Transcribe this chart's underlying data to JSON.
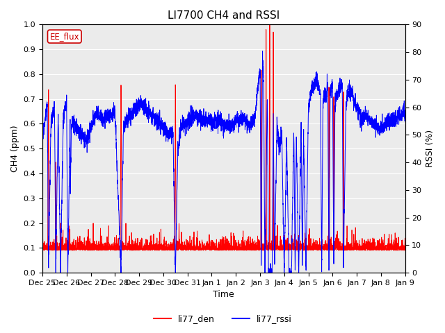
{
  "title": "LI7700 CH4 and RSSI",
  "xlabel": "Time",
  "ylabel_left": "CH4 (ppm)",
  "ylabel_right": "RSSI (%)",
  "ylim_left": [
    0.0,
    1.0
  ],
  "ylim_right": [
    0,
    90
  ],
  "yticks_left": [
    0.0,
    0.1,
    0.2,
    0.3,
    0.4,
    0.5,
    0.6,
    0.7,
    0.8,
    0.9,
    1.0
  ],
  "yticks_right": [
    0,
    10,
    20,
    30,
    40,
    50,
    60,
    70,
    80,
    90
  ],
  "color_den": "#ff0000",
  "color_rssi": "#0000ff",
  "legend_label_den": "li77_den",
  "legend_label_rssi": "li77_rssi",
  "annotation_text": "EE_flux",
  "annotation_color": "#cc0000",
  "plot_bg_color": "#ebebeb",
  "title_fontsize": 11,
  "axis_fontsize": 9,
  "tick_fontsize": 8,
  "xticklabels": [
    "Dec 25",
    "Dec 26",
    "Dec 27",
    "Dec 28",
    "Dec 29",
    "Dec 30",
    "Dec 31",
    "Jan 1",
    "Jan 2",
    "Jan 3",
    "Jan 4",
    "Jan 5",
    "Jan 6",
    "Jan 7",
    "Jan 8",
    "Jan 9"
  ],
  "num_days": 15
}
